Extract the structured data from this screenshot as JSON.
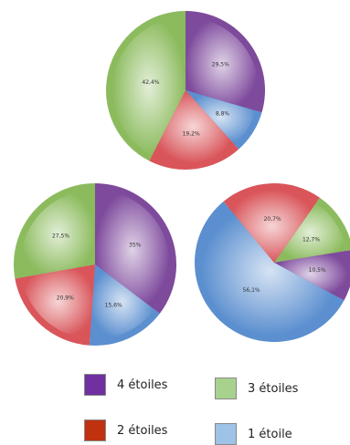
{
  "chart_data": [
    {
      "type": "pie",
      "labels": [
        "4 étoiles",
        "1 étoile",
        "2 étoiles",
        "3 étoiles"
      ],
      "values": [
        29.5,
        8.8,
        19.2,
        42.4
      ],
      "value_labels": [
        "29,5%",
        "8,8%",
        "19,2%",
        "42,4%"
      ]
    },
    {
      "type": "pie",
      "labels": [
        "4 étoiles",
        "1 étoile",
        "2 étoiles",
        "3 étoiles"
      ],
      "values": [
        35,
        15.6,
        20.9,
        27.5
      ],
      "value_labels": [
        "35%",
        "15,6%",
        "20,9%",
        "27,5%"
      ]
    },
    {
      "type": "pie",
      "labels": [
        "3 étoiles",
        "4 étoiles",
        "1 étoile",
        "2 étoiles"
      ],
      "values": [
        12.7,
        10.5,
        56.1,
        20.7
      ],
      "value_labels": [
        "12,7%",
        "10,5%",
        "56,1%",
        "20,7%"
      ]
    }
  ],
  "colors": {
    "4 étoiles": "#7e4a9c",
    "3 étoiles": "#8cbb5e",
    "2 étoiles": "#d9555a",
    "1 étoile": "#5b8fcf"
  },
  "legend": [
    {
      "label": "4 étoiles",
      "swatch": "#7030a0"
    },
    {
      "label": "3 étoiles",
      "swatch": "#a9d18e"
    },
    {
      "label": "2 étoiles",
      "swatch": "#c0310f"
    },
    {
      "label": "1 étoile",
      "swatch": "#9dc3e6"
    }
  ]
}
